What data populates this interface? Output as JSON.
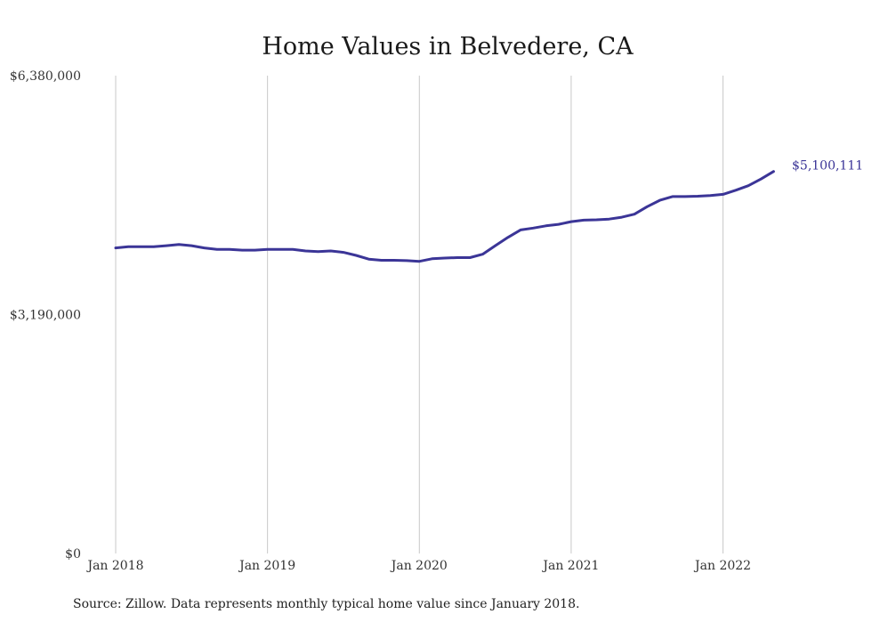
{
  "chart_data": {
    "type": "line",
    "title": "Home Values in Belvedere, CA",
    "xlabel": "",
    "ylabel": "",
    "source": "Source: Zillow. Data represents monthly typical home value since January 2018.",
    "ylim": [
      0,
      6380000
    ],
    "y_ticks": [
      {
        "value": 0,
        "label": "$0"
      },
      {
        "value": 3190000,
        "label": "$3,190,000"
      },
      {
        "value": 6380000,
        "label": "$6,380,000"
      }
    ],
    "x_ticks": [
      {
        "value": "2018-01",
        "label": "Jan 2018"
      },
      {
        "value": "2019-01",
        "label": "Jan 2019"
      },
      {
        "value": "2020-01",
        "label": "Jan 2020"
      },
      {
        "value": "2021-01",
        "label": "Jan 2021"
      },
      {
        "value": "2022-01",
        "label": "Jan 2022"
      }
    ],
    "grid": {
      "vertical": true,
      "horizontal": false
    },
    "line_color": "#3b3597",
    "end_label": "$5,100,111",
    "series": [
      {
        "x": [
          "2018-01",
          "2018-02",
          "2018-03",
          "2018-04",
          "2018-05",
          "2018-06",
          "2018-07",
          "2018-08",
          "2018-09",
          "2018-10",
          "2018-11",
          "2018-12",
          "2019-01",
          "2019-02",
          "2019-03",
          "2019-04",
          "2019-05",
          "2019-06",
          "2019-07",
          "2019-08",
          "2019-09",
          "2019-10",
          "2019-11",
          "2019-12",
          "2020-01",
          "2020-02",
          "2020-03",
          "2020-04",
          "2020-05",
          "2020-06",
          "2020-07",
          "2020-08",
          "2020-09",
          "2020-10",
          "2020-11",
          "2020-12",
          "2021-01",
          "2021-02",
          "2021-03",
          "2021-04",
          "2021-05",
          "2021-06",
          "2021-07",
          "2021-08",
          "2021-09",
          "2021-10",
          "2021-11",
          "2021-12",
          "2022-01",
          "2022-02",
          "2022-03",
          "2022-04",
          "2022-05"
        ],
        "values": [
          4080000,
          4095000,
          4095000,
          4095000,
          4110000,
          4125000,
          4110000,
          4080000,
          4060000,
          4060000,
          4050000,
          4050000,
          4060000,
          4060000,
          4060000,
          4040000,
          4030000,
          4040000,
          4020000,
          3980000,
          3930000,
          3915000,
          3915000,
          3910000,
          3900000,
          3935000,
          3945000,
          3950000,
          3950000,
          3995000,
          4110000,
          4220000,
          4320000,
          4345000,
          4375000,
          4395000,
          4430000,
          4450000,
          4455000,
          4465000,
          4490000,
          4530000,
          4630000,
          4715000,
          4765000,
          4765000,
          4770000,
          4780000,
          4795000,
          4850000,
          4910000,
          5000000,
          5100111
        ]
      }
    ]
  }
}
